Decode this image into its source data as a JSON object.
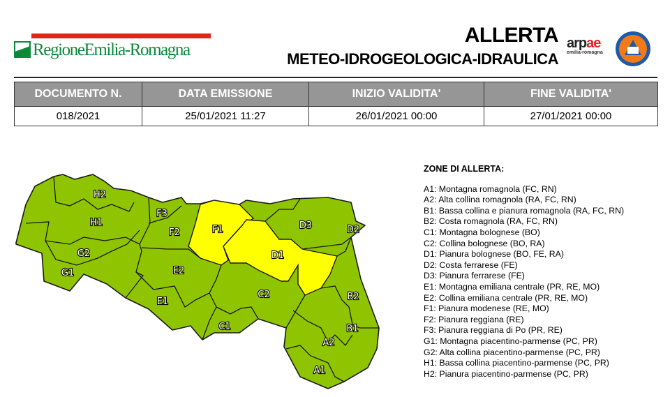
{
  "header": {
    "region_logo_text": "RegioneEmilia-Romagna",
    "title": "ALLERTA",
    "subtitle": "METEO-IDROGEOLOGICA-IDRAULICA",
    "arpae_logo": {
      "text": "arpae",
      "subtext": "emilia-romagna"
    },
    "civil_protection_logo": "PROTEZIONE CIVILE REGIONE EMILIA-ROMAGNA"
  },
  "info_table": {
    "headers": [
      "DOCUMENTO N.",
      "DATA EMISSIONE",
      "INIZIO VALIDITA'",
      "FINE VALIDITA'"
    ],
    "values": [
      "018/2021",
      "25/01/2021 11:27",
      "26/01/2021 00:00",
      "27/01/2021 00:00"
    ]
  },
  "map": {
    "colors": {
      "green": "#8fc400",
      "yellow": "#ffff00"
    },
    "zones": [
      {
        "code": "H2",
        "level": "green"
      },
      {
        "code": "F3",
        "level": "green"
      },
      {
        "code": "H1",
        "level": "green"
      },
      {
        "code": "F2",
        "level": "green"
      },
      {
        "code": "F1",
        "level": "yellow"
      },
      {
        "code": "D3",
        "level": "green"
      },
      {
        "code": "D2",
        "level": "green"
      },
      {
        "code": "G2",
        "level": "green"
      },
      {
        "code": "D1",
        "level": "yellow"
      },
      {
        "code": "G1",
        "level": "green"
      },
      {
        "code": "E2",
        "level": "green"
      },
      {
        "code": "C2",
        "level": "green"
      },
      {
        "code": "B2",
        "level": "green"
      },
      {
        "code": "E1",
        "level": "green"
      },
      {
        "code": "C1",
        "level": "green"
      },
      {
        "code": "B1",
        "level": "green"
      },
      {
        "code": "A2",
        "level": "green"
      },
      {
        "code": "A1",
        "level": "green"
      }
    ]
  },
  "legend": {
    "title": "ZONE DI ALLERTA:",
    "items": [
      "A1: Montagna romagnola (FC, RN)",
      "A2: Alta collina romagnola (RA, FC, RN)",
      "B1: Bassa collina e pianura romagnola (RA, FC, RN)",
      "B2: Costa romagnola (RA, FC, RN)",
      "C1: Montagna bolognese (BO)",
      "C2: Collina bolognese (BO, RA)",
      "D1: Pianura bolognese (BO, FE, RA)",
      "D2: Costa ferrarese (FE)",
      "D3: Pianura ferrarese (FE)",
      "E1: Montagna emiliana centrale (PR, RE, MO)",
      "E2: Collina emiliana centrale (PR, RE, MO)",
      "F1: Pianura modenese (RE, MO)",
      "F2: Pianura reggiana (RE)",
      "F3: Pianura reggiana di Po (PR, RE)",
      "G1: Montagna piacentino-parmense (PC, PR)",
      "G2: Alta collina piacentino-parmense (PC, PR)",
      "H1: Bassa collina piacentino-parmense (PC, PR)",
      "H2: Pianura piacentino-parmense (PC, PR)"
    ]
  }
}
